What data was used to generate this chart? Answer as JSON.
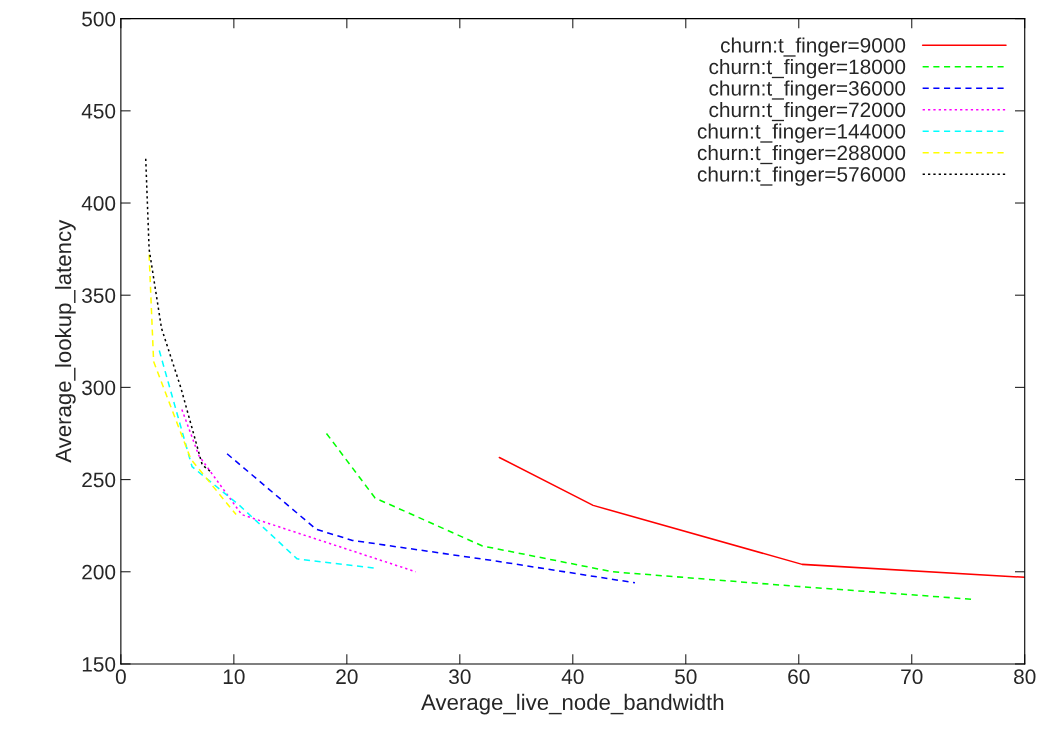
{
  "chart_data": {
    "type": "line",
    "xlabel": "Average_live_node_bandwidth",
    "ylabel": "Average_lookup_latency",
    "xlim": [
      0,
      80
    ],
    "xticks": [
      0,
      10,
      20,
      30,
      40,
      50,
      60,
      70,
      80
    ],
    "ylim": [
      150,
      500
    ],
    "yticks": [
      150,
      200,
      250,
      300,
      350,
      400,
      450,
      500
    ],
    "legend": "top right",
    "grid": false,
    "series": [
      {
        "name": "churn:t_finger=9000",
        "color": "#ff0000",
        "line_style": "solid",
        "x": [
          33.5,
          41.8,
          60.3,
          80
        ],
        "values": [
          262,
          236,
          204,
          197
        ]
      },
      {
        "name": "churn:t_finger=18000",
        "color": "#00ff00",
        "line_style": "dashed",
        "x": [
          18.2,
          22.5,
          32,
          43.5,
          60,
          75.5
        ],
        "values": [
          275,
          240,
          214,
          200,
          192,
          185
        ]
      },
      {
        "name": "churn:t_finger=36000",
        "color": "#0000ff",
        "line_style": "dashed",
        "x": [
          9.4,
          17.3,
          20.5,
          33,
          45.5
        ],
        "values": [
          264,
          223,
          217,
          206,
          194
        ]
      },
      {
        "name": "churn:t_finger=72000",
        "color": "#ff00ff",
        "line_style": "dotted",
        "x": [
          5.4,
          6.9,
          10.7,
          26.1
        ],
        "values": [
          288,
          263,
          231,
          200
        ]
      },
      {
        "name": "churn:t_finger=144000",
        "color": "#00ffff",
        "line_style": "dashed",
        "x": [
          3.4,
          6.3,
          10.5,
          15.6,
          22.4
        ],
        "values": [
          320,
          257,
          236,
          207,
          202
        ]
      },
      {
        "name": "churn:t_finger=288000",
        "color": "#ffff00",
        "line_style": "dashed",
        "x": [
          2.5,
          2.9,
          6.2,
          10.2
        ],
        "values": [
          372,
          314,
          261,
          231
        ]
      },
      {
        "name": "churn:t_finger=576000",
        "color": "#000000",
        "line_style": "dotted",
        "x": [
          2.2,
          2.5,
          3.6,
          5.3,
          7.2,
          8.0
        ],
        "values": [
          424,
          375,
          332,
          300,
          258,
          254
        ]
      }
    ]
  }
}
